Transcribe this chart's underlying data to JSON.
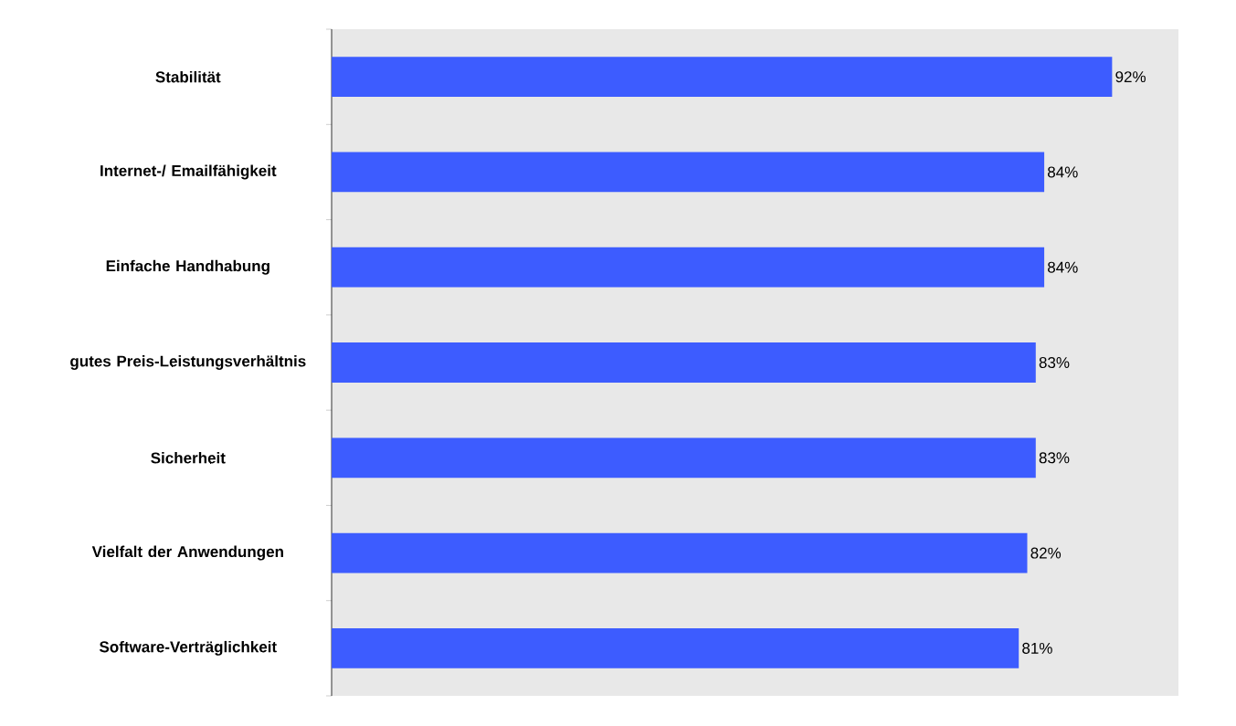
{
  "chart_data": {
    "type": "bar",
    "orientation": "horizontal",
    "categories": [
      "Stabilität",
      "Internet-/ Emailfähigkeit",
      "Einfache Handhabung",
      "gutes Preis-Leistungsverhältnis",
      "Sicherheit",
      "Vielfalt der Anwendungen",
      "Software-Verträglichkeit"
    ],
    "values": [
      92,
      84,
      84,
      83,
      83,
      82,
      81
    ],
    "value_labels": [
      "92%",
      "84%",
      "84%",
      "83%",
      "83%",
      "82%",
      "81%"
    ],
    "color": "#3d5cff"
  }
}
